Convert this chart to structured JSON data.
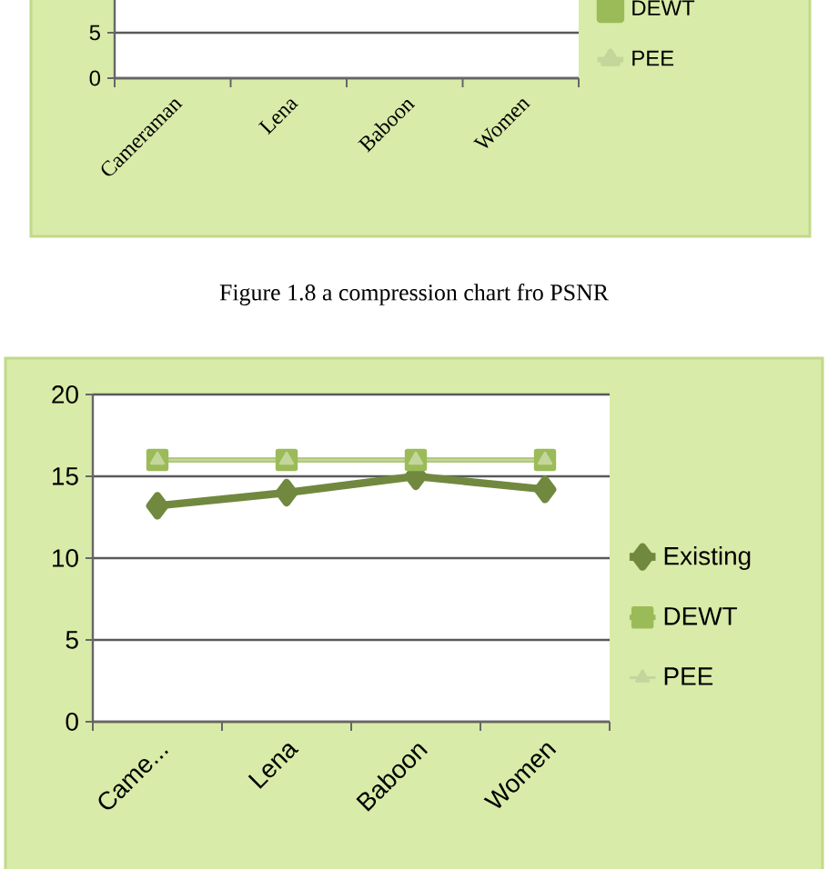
{
  "chart_data": [
    {
      "type": "line",
      "categories": [
        "Cameraman",
        "Lena",
        "Baboon",
        "Women"
      ],
      "ylim": [
        0,
        8.6
      ],
      "yticks": [
        0,
        5
      ],
      "grid": "y",
      "legend": "right",
      "series": [
        {
          "name": "DEWT",
          "color": "#9bbb59",
          "marker": "square",
          "values": [
            null,
            null,
            null,
            null
          ]
        },
        {
          "name": "PEE",
          "color": "#c3d69b",
          "marker": "triangle",
          "values": [
            null,
            null,
            null,
            null
          ]
        }
      ],
      "annotations": [
        "Figure 1.8 a compression chart fro PSNR"
      ]
    },
    {
      "type": "line",
      "categories": [
        "Came...",
        "Lena",
        "Baboon",
        "Women"
      ],
      "ylim": [
        0,
        20
      ],
      "yticks": [
        0,
        5,
        10,
        15,
        20
      ],
      "grid": "y",
      "legend": "right",
      "series": [
        {
          "name": "Existing",
          "color": "#71893f",
          "marker": "diamond",
          "values": [
            13.2,
            14,
            15,
            14.2
          ]
        },
        {
          "name": "DEWT",
          "color": "#9bbb59",
          "marker": "square",
          "values": [
            16,
            16,
            16,
            16
          ]
        },
        {
          "name": "PEE",
          "color": "#c3d69b",
          "marker": "triangle",
          "values": [
            16,
            16,
            16,
            16
          ]
        }
      ]
    }
  ]
}
